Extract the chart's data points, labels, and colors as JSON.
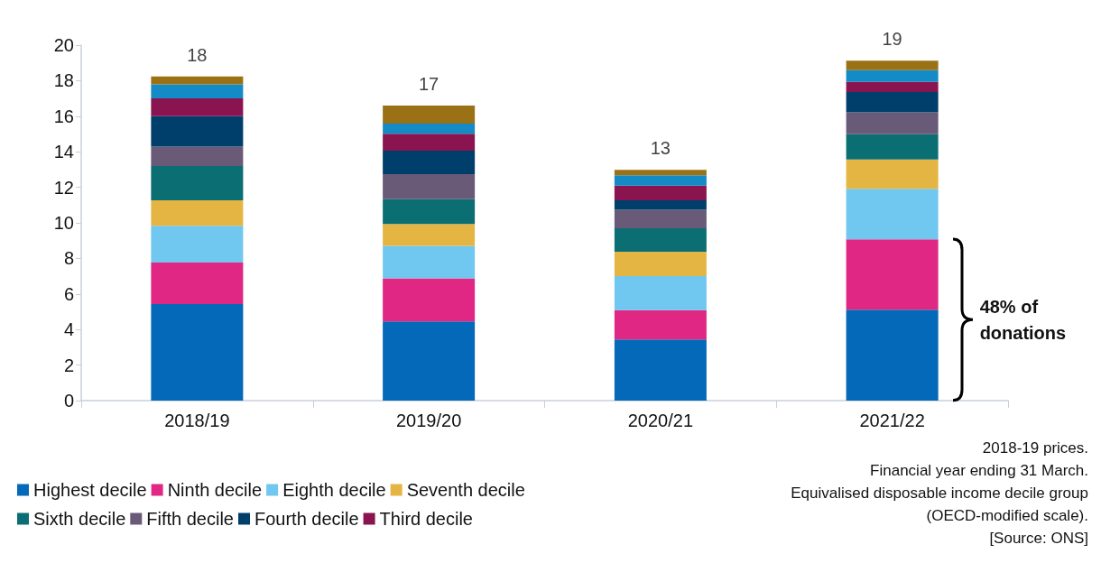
{
  "chart_data": {
    "type": "bar",
    "stacked": true,
    "categories": [
      "2018/19",
      "2019/20",
      "2020/21",
      "2021/22"
    ],
    "series": [
      {
        "name": "Highest decile",
        "color": "#0369b8",
        "values": [
          5.43,
          4.45,
          3.44,
          5.11
        ]
      },
      {
        "name": "Ninth decile",
        "color": "#e02783",
        "values": [
          2.34,
          2.43,
          1.65,
          3.96
        ]
      },
      {
        "name": "Eighth decile",
        "color": "#70c7f0",
        "values": [
          2.07,
          1.83,
          1.91,
          2.84
        ]
      },
      {
        "name": "Seventh decile",
        "color": "#e4b542",
        "values": [
          1.43,
          1.23,
          1.37,
          1.65
        ]
      },
      {
        "name": "Sixth decile",
        "color": "#0b6e73",
        "values": [
          1.93,
          1.39,
          1.33,
          1.43
        ]
      },
      {
        "name": "Fifth decile",
        "color": "#695a77",
        "values": [
          1.09,
          1.41,
          1.04,
          1.23
        ]
      },
      {
        "name": "Fourth decile",
        "color": "#003f6b",
        "values": [
          1.71,
          1.32,
          0.53,
          1.14
        ]
      },
      {
        "name": "Third decile",
        "color": "#891450",
        "values": [
          1.0,
          0.95,
          0.82,
          0.57
        ]
      },
      {
        "color": "#148ac6",
        "values": [
          0.79,
          0.58,
          0.59,
          0.66
        ]
      },
      {
        "color": "#9a7215",
        "values": [
          0.44,
          1.01,
          0.3,
          0.54
        ]
      }
    ],
    "totals": [
      "18",
      "17",
      "13",
      "19"
    ],
    "ylim": [
      0,
      20
    ],
    "yticks": [
      0,
      2,
      4,
      6,
      8,
      10,
      12,
      14,
      16,
      18,
      20
    ],
    "grid": false,
    "legend": "bottom left",
    "annotations": [
      "48% of donations",
      "2018-19 prices.",
      "Financial year ending 31 March.",
      "Equivalised disposable income decile group",
      "(OECD-modified scale).",
      "[Source: ONS]"
    ]
  }
}
